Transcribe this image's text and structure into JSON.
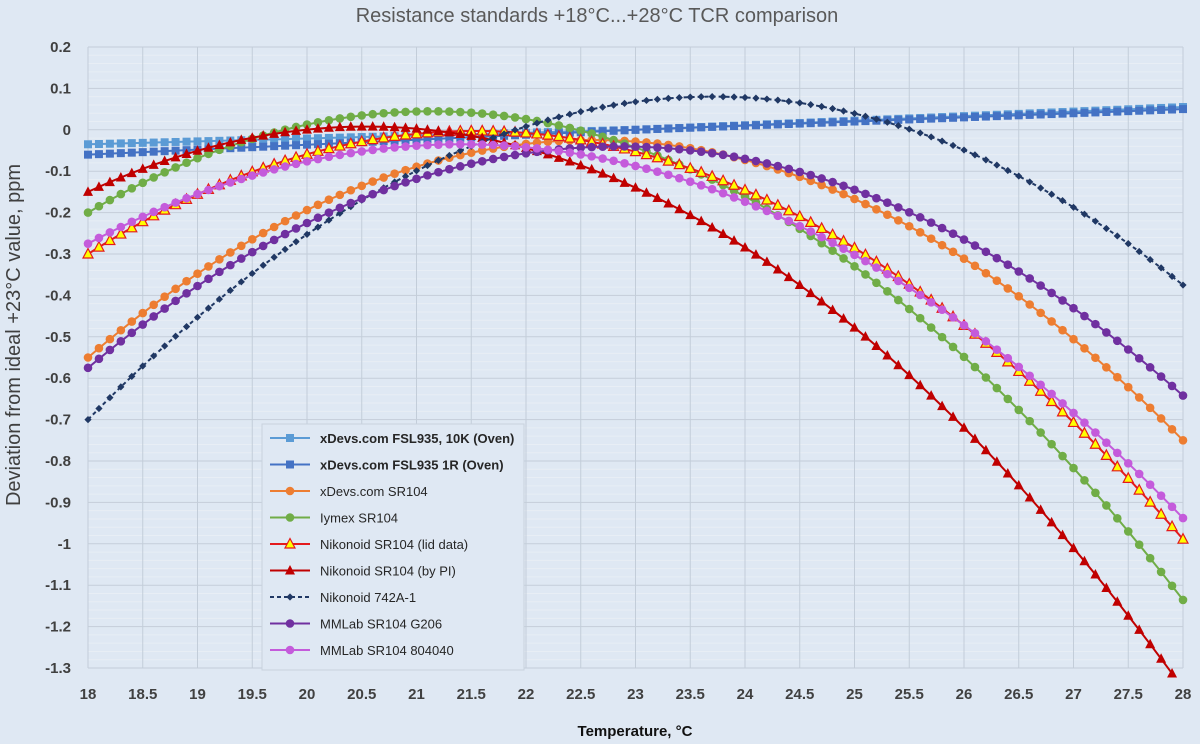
{
  "chart_data": {
    "type": "line",
    "title": "Resistance standards +18°C...+28°C TCR comparison",
    "xlabel": "Temperature, °C",
    "ylabel": "Deviation from ideal +23°C value, ppm",
    "xlim": [
      18,
      28
    ],
    "ylim": [
      -1.3,
      0.2
    ],
    "x_ticks": [
      "18",
      "18.5",
      "19",
      "19.5",
      "20",
      "20.5",
      "21",
      "21.5",
      "22",
      "22.5",
      "23",
      "23.5",
      "24",
      "24.5",
      "25",
      "25.5",
      "26",
      "26.5",
      "27",
      "27.5",
      "28"
    ],
    "y_ticks": [
      "0.2",
      "0.1",
      "0",
      "-0.1",
      "-0.2",
      "-0.3",
      "-0.4",
      "-0.5",
      "-0.6",
      "-0.7",
      "-0.8",
      "-0.9",
      "-1",
      "-1.1",
      "-1.2",
      "-1.3"
    ],
    "grid": true,
    "legend_position": "lower-left-inside",
    "x_step": 0.1,
    "series": [
      {
        "name": "xDevs.com FSL935, 10K (Oven)",
        "color": "#5b9bd5",
        "marker": "square",
        "dashed": false,
        "bold": true,
        "values": [
          -0.035,
          -0.0343,
          -0.0336,
          -0.0329,
          -0.0322,
          -0.0315,
          -0.0308,
          -0.0301,
          -0.0294,
          -0.0287,
          -0.028,
          -0.0273,
          -0.0266,
          -0.0259,
          -0.0252,
          -0.0245,
          -0.0238,
          -0.0231,
          -0.0224,
          -0.0217,
          -0.021,
          -0.0203,
          -0.0196,
          -0.0189,
          -0.0182,
          -0.0175,
          -0.0168,
          -0.0161,
          -0.0154,
          -0.0147,
          -0.014,
          -0.0133,
          -0.0126,
          -0.0119,
          -0.0112,
          -0.0105,
          -0.0098,
          -0.0091,
          -0.0084,
          -0.0077,
          -0.007,
          -0.0063,
          -0.0056,
          -0.0049,
          -0.0042,
          -0.0035,
          -0.0028,
          -0.0021,
          -0.0014,
          -0.0007,
          0,
          0.0011,
          0.0022,
          0.0033,
          0.0044,
          0.0055,
          0.0066,
          0.0077,
          0.0088,
          0.0099,
          0.011,
          0.0121,
          0.0132,
          0.0143,
          0.0154,
          0.0165,
          0.0176,
          0.0187,
          0.0198,
          0.0209,
          0.022,
          0.0231,
          0.0242,
          0.0253,
          0.0264,
          0.0275,
          0.0286,
          0.0297,
          0.0308,
          0.0319,
          0.033,
          0.0341,
          0.0352,
          0.0363,
          0.0374,
          0.0385,
          0.0396,
          0.0407,
          0.0418,
          0.0429,
          0.044,
          0.0451,
          0.0462,
          0.0473,
          0.0484,
          0.0495,
          0.0506,
          0.0517,
          0.0528,
          0.0539,
          0.055
        ]
      },
      {
        "name": "xDevs.com FSL935 1R (Oven)",
        "color": "#4472c4",
        "marker": "square",
        "dashed": false,
        "bold": true,
        "values": [
          -0.06,
          -0.0588,
          -0.0576,
          -0.0564,
          -0.0552,
          -0.054,
          -0.0528,
          -0.0516,
          -0.0504,
          -0.0492,
          -0.048,
          -0.0468,
          -0.0456,
          -0.0444,
          -0.0432,
          -0.042,
          -0.0408,
          -0.0396,
          -0.0384,
          -0.0372,
          -0.036,
          -0.0348,
          -0.0336,
          -0.0324,
          -0.0312,
          -0.03,
          -0.0288,
          -0.0276,
          -0.0264,
          -0.0252,
          -0.024,
          -0.0228,
          -0.0216,
          -0.0204,
          -0.0192,
          -0.018,
          -0.0168,
          -0.0156,
          -0.0144,
          -0.0132,
          -0.012,
          -0.0108,
          -0.0096,
          -0.0084,
          -0.0072,
          -0.006,
          -0.0048,
          -0.0036,
          -0.0024,
          -0.0012,
          0,
          0.001,
          0.002,
          0.003,
          0.004,
          0.005,
          0.006,
          0.007,
          0.008,
          0.009,
          0.01,
          0.011,
          0.012,
          0.013,
          0.014,
          0.015,
          0.016,
          0.017,
          0.018,
          0.019,
          0.02,
          0.021,
          0.022,
          0.023,
          0.024,
          0.025,
          0.026,
          0.027,
          0.028,
          0.029,
          0.03,
          0.031,
          0.032,
          0.033,
          0.034,
          0.035,
          0.036,
          0.037,
          0.038,
          0.039,
          0.04,
          0.041,
          0.042,
          0.043,
          0.044,
          0.045,
          0.046,
          0.047,
          0.048,
          0.049,
          0.05
        ]
      },
      {
        "name": "xDevs.com SR104",
        "color": "#ed7d31",
        "marker": "circle",
        "dashed": false,
        "bold": false,
        "values": [
          -0.55,
          -0.5276,
          -0.5056,
          -0.4842,
          -0.4632,
          -0.4427,
          -0.4227,
          -0.4032,
          -0.3842,
          -0.3656,
          -0.3476,
          -0.33,
          -0.3129,
          -0.2963,
          -0.2802,
          -0.2646,
          -0.2494,
          -0.2348,
          -0.2206,
          -0.207,
          -0.1938,
          -0.1811,
          -0.1689,
          -0.1572,
          -0.146,
          -0.1353,
          -0.1251,
          -0.1153,
          -0.1061,
          -0.0974,
          -0.0892,
          -0.0814,
          -0.0742,
          -0.0674,
          -0.0611,
          -0.0554,
          -0.0501,
          -0.0453,
          -0.0411,
          -0.0373,
          -0.034,
          -0.0312,
          -0.0289,
          -0.0271,
          -0.0258,
          -0.025,
          -0.0247,
          -0.0249,
          -0.0256,
          -0.0268,
          -0.0285,
          -0.0306,
          -0.0333,
          -0.0365,
          -0.0402,
          -0.0444,
          -0.0491,
          -0.0542,
          -0.0599,
          -0.0661,
          -0.0728,
          -0.08,
          -0.0877,
          -0.0958,
          -0.1045,
          -0.1137,
          -0.1234,
          -0.1336,
          -0.1443,
          -0.1554,
          -0.1671,
          -0.1793,
          -0.192,
          -0.2052,
          -0.2188,
          -0.233,
          -0.2477,
          -0.2629,
          -0.2786,
          -0.2947,
          -0.3114,
          -0.3286,
          -0.3463,
          -0.3645,
          -0.3832,
          -0.4023,
          -0.422,
          -0.4422,
          -0.4629,
          -0.4841,
          -0.5058,
          -0.5279,
          -0.5506,
          -0.5738,
          -0.5975,
          -0.6217,
          -0.6464,
          -0.6716,
          -0.6973,
          -0.7235,
          -0.75
        ]
      },
      {
        "name": "Iymex SR104",
        "color": "#70ad47",
        "marker": "circle",
        "dashed": false,
        "bold": false,
        "values": [
          -0.2,
          -0.1846,
          -0.1697,
          -0.1553,
          -0.1414,
          -0.128,
          -0.1151,
          -0.1027,
          -0.0909,
          -0.0795,
          -0.0686,
          -0.0582,
          -0.0483,
          -0.039,
          -0.0301,
          -0.0217,
          -0.0138,
          -0.0065,
          0.0004,
          0.0068,
          0.0127,
          0.0181,
          0.023,
          0.0274,
          0.0313,
          0.0347,
          0.0376,
          0.04,
          0.0419,
          0.0433,
          0.0442,
          0.0447,
          0.0446,
          0.044,
          0.0429,
          0.0413,
          0.0392,
          0.0366,
          0.0335,
          0.0299,
          0.0259,
          0.0213,
          0.0162,
          0.0106,
          0.0045,
          -0.0021,
          -0.0092,
          -0.0168,
          -0.0249,
          -0.0335,
          -0.0426,
          -0.0522,
          -0.0623,
          -0.0729,
          -0.084,
          -0.0956,
          -0.1077,
          -0.1203,
          -0.1334,
          -0.147,
          -0.1611,
          -0.1757,
          -0.1909,
          -0.2065,
          -0.2226,
          -0.2392,
          -0.2563,
          -0.2739,
          -0.2921,
          -0.3107,
          -0.3298,
          -0.3494,
          -0.3695,
          -0.3902,
          -0.4113,
          -0.4329,
          -0.4551,
          -0.4777,
          -0.5008,
          -0.5244,
          -0.5485,
          -0.5731,
          -0.5983,
          -0.6239,
          -0.65,
          -0.6766,
          -0.7037,
          -0.7313,
          -0.7594,
          -0.788,
          -0.8171,
          -0.8467,
          -0.8768,
          -0.9074,
          -0.9385,
          -0.9701,
          -1.0022,
          -1.0348,
          -1.0679,
          -1.1015,
          -1.1355
        ]
      },
      {
        "name": "Nikonoid SR104 (lid data)",
        "color": "#e41a1c",
        "marker": "triangle-yellow",
        "dashed": false,
        "bold": false,
        "values": [
          -0.3,
          -0.2834,
          -0.2674,
          -0.2518,
          -0.2367,
          -0.222,
          -0.2078,
          -0.1941,
          -0.1809,
          -0.1681,
          -0.1558,
          -0.144,
          -0.1327,
          -0.1218,
          -0.1114,
          -0.1015,
          -0.0921,
          -0.0831,
          -0.0746,
          -0.0666,
          -0.0591,
          -0.052,
          -0.0454,
          -0.0393,
          -0.0337,
          -0.0285,
          -0.0238,
          -0.0196,
          -0.0158,
          -0.0125,
          -0.0097,
          -0.0074,
          -0.0055,
          -0.0041,
          -0.0032,
          -0.0028,
          -0.0028,
          -0.0033,
          -0.0043,
          -0.0057,
          -0.0076,
          -0.01,
          -0.0129,
          -0.0162,
          -0.02,
          -0.0243,
          -0.0291,
          -0.0343,
          -0.04,
          -0.0462,
          -0.0528,
          -0.06,
          -0.0676,
          -0.0757,
          -0.0842,
          -0.0932,
          -0.1027,
          -0.1127,
          -0.1231,
          -0.134,
          -0.1454,
          -0.1573,
          -0.1696,
          -0.1824,
          -0.1957,
          -0.2094,
          -0.2237,
          -0.2383,
          -0.2535,
          -0.2691,
          -0.2852,
          -0.3018,
          -0.3189,
          -0.3364,
          -0.3544,
          -0.3729,
          -0.3918,
          -0.4113,
          -0.4312,
          -0.4515,
          -0.4724,
          -0.4937,
          -0.5155,
          -0.5377,
          -0.5605,
          -0.5837,
          -0.6074,
          -0.6315,
          -0.6562,
          -0.6813,
          -0.7069,
          -0.7329,
          -0.7595,
          -0.7865,
          -0.814,
          -0.8419,
          -0.8704,
          -0.8993,
          -0.9287,
          -0.9585,
          -0.9888
        ]
      },
      {
        "name": "Nikonoid SR104 (by PI)",
        "color": "#c00000",
        "marker": "triangle",
        "dashed": false,
        "bold": false,
        "values": [
          -0.15,
          -0.1379,
          -0.1263,
          -0.1152,
          -0.1045,
          -0.0943,
          -0.0846,
          -0.0754,
          -0.0667,
          -0.0584,
          -0.0507,
          -0.0434,
          -0.0366,
          -0.0303,
          -0.0244,
          -0.0191,
          -0.0142,
          -0.0098,
          -0.0059,
          -0.0025,
          0.0004,
          0.0029,
          0.0049,
          0.0064,
          0.0073,
          0.0078,
          0.0078,
          0.0073,
          0.0063,
          0.0048,
          0.0027,
          0.0002,
          -0.0028,
          -0.0062,
          -0.0102,
          -0.0146,
          -0.0195,
          -0.025,
          -0.0309,
          -0.0372,
          -0.0441,
          -0.0515,
          -0.0594,
          -0.0677,
          -0.0766,
          -0.0859,
          -0.0957,
          -0.106,
          -0.1168,
          -0.1281,
          -0.1398,
          -0.1521,
          -0.1648,
          -0.1781,
          -0.1918,
          -0.206,
          -0.2207,
          -0.2359,
          -0.2516,
          -0.2677,
          -0.2844,
          -0.3015,
          -0.3191,
          -0.3373,
          -0.3559,
          -0.375,
          -0.3945,
          -0.4146,
          -0.4352,
          -0.4562,
          -0.4777,
          -0.4997,
          -0.5222,
          -0.5452,
          -0.5687,
          -0.5926,
          -0.6171,
          -0.642,
          -0.6674,
          -0.6933,
          -0.7197,
          -0.7466,
          -0.7739,
          -0.8018,
          -0.8301,
          -0.8589,
          -0.8882,
          -0.918,
          -0.9483,
          -0.979,
          -1.0103,
          -1.042,
          -1.0742,
          -1.1069,
          -1.1401,
          -1.1737,
          -1.2079,
          -1.2425,
          -1.2776,
          -1.3132,
          -1.3493
        ]
      },
      {
        "name": "Nikonoid 742A-1",
        "color": "#203864",
        "marker": "diamond",
        "dashed": true,
        "bold": false,
        "values": [
          -0.7,
          -0.6732,
          -0.6469,
          -0.621,
          -0.5956,
          -0.5706,
          -0.5462,
          -0.5222,
          -0.4986,
          -0.4755,
          -0.4529,
          -0.4308,
          -0.4091,
          -0.3879,
          -0.3672,
          -0.3469,
          -0.3271,
          -0.3078,
          -0.2889,
          -0.2705,
          -0.2526,
          -0.2351,
          -0.2181,
          -0.2016,
          -0.1855,
          -0.1699,
          -0.1548,
          -0.1402,
          -0.126,
          -0.1122,
          -0.099,
          -0.0862,
          -0.0739,
          -0.062,
          -0.0506,
          -0.0397,
          -0.0292,
          -0.0192,
          -0.0097,
          -0.0006,
          0.008,
          0.0161,
          0.0238,
          0.031,
          0.0377,
          0.0439,
          0.0496,
          0.0548,
          0.0596,
          0.0638,
          0.0676,
          0.0709,
          0.0736,
          0.0759,
          0.0777,
          0.079,
          0.0798,
          0.0801,
          0.0799,
          0.0793,
          0.0781,
          0.0765,
          0.0743,
          0.0717,
          0.0686,
          0.065,
          0.0608,
          0.0562,
          0.0511,
          0.0455,
          0.0394,
          0.0328,
          0.0257,
          0.0182,
          0.0101,
          0.0015,
          -0.0076,
          -0.0172,
          -0.0273,
          -0.0378,
          -0.0489,
          -0.0605,
          -0.0726,
          -0.0852,
          -0.0983,
          -0.1118,
          -0.1259,
          -0.1405,
          -0.1556,
          -0.1711,
          -0.1872,
          -0.2038,
          -0.2208,
          -0.2384,
          -0.2564,
          -0.2749,
          -0.294,
          -0.3135,
          -0.3335,
          -0.354,
          -0.375
        ]
      },
      {
        "name": "MMLab SR104 G206",
        "color": "#7030a0",
        "marker": "circle",
        "dashed": false,
        "bold": false,
        "values": [
          -0.575,
          -0.5532,
          -0.5318,
          -0.5109,
          -0.4904,
          -0.4704,
          -0.4509,
          -0.4318,
          -0.4132,
          -0.395,
          -0.3773,
          -0.36,
          -0.3432,
          -0.3269,
          -0.311,
          -0.2955,
          -0.2805,
          -0.266,
          -0.2519,
          -0.2383,
          -0.2251,
          -0.2124,
          -0.2001,
          -0.1883,
          -0.1769,
          -0.166,
          -0.1556,
          -0.1456,
          -0.136,
          -0.1269,
          -0.1183,
          -0.1101,
          -0.1024,
          -0.0951,
          -0.0883,
          -0.0819,
          -0.076,
          -0.0705,
          -0.0655,
          -0.0609,
          -0.0568,
          -0.0532,
          -0.05,
          -0.0472,
          -0.0449,
          -0.0431,
          -0.0417,
          -0.0408,
          -0.0403,
          -0.0403,
          -0.0407,
          -0.0416,
          -0.0429,
          -0.0447,
          -0.047,
          -0.0497,
          -0.0528,
          -0.0564,
          -0.0605,
          -0.065,
          -0.07,
          -0.0754,
          -0.0813,
          -0.0876,
          -0.0944,
          -0.1017,
          -0.1094,
          -0.1176,
          -0.1262,
          -0.1353,
          -0.1448,
          -0.1548,
          -0.1652,
          -0.1761,
          -0.1875,
          -0.1993,
          -0.2115,
          -0.2242,
          -0.2374,
          -0.251,
          -0.2651,
          -0.2796,
          -0.2946,
          -0.31,
          -0.3259,
          -0.3423,
          -0.3591,
          -0.3763,
          -0.394,
          -0.4122,
          -0.4308,
          -0.4499,
          -0.4694,
          -0.4894,
          -0.5098,
          -0.5307,
          -0.552,
          -0.5738,
          -0.5961,
          -0.6188,
          -0.642
        ]
      },
      {
        "name": "MMLab SR104 804040",
        "color": "#c45bdb",
        "marker": "circle",
        "dashed": false,
        "bold": false,
        "values": [
          -0.275,
          -0.2612,
          -0.2478,
          -0.2348,
          -0.2222,
          -0.21,
          -0.1982,
          -0.1869,
          -0.1759,
          -0.1653,
          -0.1552,
          -0.1454,
          -0.1361,
          -0.1272,
          -0.1187,
          -0.1106,
          -0.1029,
          -0.0956,
          -0.0887,
          -0.0823,
          -0.0762,
          -0.0706,
          -0.0654,
          -0.0606,
          -0.0562,
          -0.0522,
          -0.0486,
          -0.0455,
          -0.0427,
          -0.0404,
          -0.0385,
          -0.037,
          -0.0359,
          -0.0352,
          -0.035,
          -0.0351,
          -0.0357,
          -0.0367,
          -0.0381,
          -0.0399,
          -0.0422,
          -0.0448,
          -0.0479,
          -0.0513,
          -0.0552,
          -0.0595,
          -0.0642,
          -0.0694,
          -0.0749,
          -0.0809,
          -0.0872,
          -0.094,
          -0.1012,
          -0.1088,
          -0.1169,
          -0.1253,
          -0.1342,
          -0.1435,
          -0.1532,
          -0.1633,
          -0.1738,
          -0.1848,
          -0.1961,
          -0.2079,
          -0.2201,
          -0.2327,
          -0.2457,
          -0.2592,
          -0.273,
          -0.2873,
          -0.302,
          -0.3171,
          -0.3327,
          -0.3486,
          -0.365,
          -0.3818,
          -0.399,
          -0.4166,
          -0.4346,
          -0.4531,
          -0.472,
          -0.4913,
          -0.511,
          -0.5311,
          -0.5517,
          -0.5727,
          -0.5941,
          -0.6159,
          -0.6381,
          -0.6608,
          -0.6839,
          -0.7074,
          -0.7313,
          -0.7557,
          -0.7804,
          -0.8056,
          -0.8312,
          -0.8572,
          -0.8837,
          -0.9106,
          -0.9379
        ]
      }
    ]
  }
}
